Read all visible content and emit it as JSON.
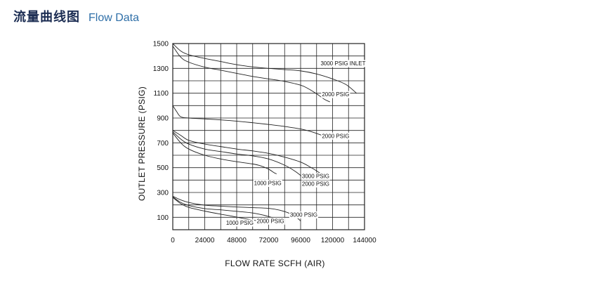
{
  "header": {
    "title_cn": "流量曲线图",
    "title_en": "Flow Data"
  },
  "chart_data": {
    "type": "line",
    "title": "",
    "xlabel": "FLOW  RATE  SCFH (AIR)",
    "ylabel": "OUTLET  PRESSURE  (PSIG)",
    "xlim": [
      0,
      144000
    ],
    "ylim": [
      0,
      1500
    ],
    "x_ticks": [
      0,
      24000,
      48000,
      72000,
      96000,
      120000,
      144000
    ],
    "x_tick_labels": [
      "0",
      "24000",
      "48000",
      "72000",
      "96000",
      "120000",
      "144000"
    ],
    "y_ticks": [
      100,
      300,
      500,
      700,
      900,
      1100,
      1300,
      1500
    ],
    "y_tick_labels": [
      "100",
      "300",
      "500",
      "700",
      "900",
      "1100",
      "1300",
      "1500"
    ],
    "grid": true,
    "grid_x_step": 12000,
    "grid_y_step": 100,
    "line_color": "#222222",
    "grid_color": "#222222",
    "series": [
      {
        "points": [
          [
            0,
            1500
          ],
          [
            6000,
            1440
          ],
          [
            12000,
            1410
          ],
          [
            24000,
            1380
          ],
          [
            36000,
            1355
          ],
          [
            48000,
            1330
          ],
          [
            60000,
            1312
          ],
          [
            72000,
            1300
          ],
          [
            84000,
            1290
          ],
          [
            96000,
            1280
          ],
          [
            108000,
            1255
          ],
          [
            120000,
            1215
          ],
          [
            130000,
            1170
          ],
          [
            138000,
            1100
          ]
        ]
      },
      {
        "points": [
          [
            0,
            1480
          ],
          [
            6000,
            1390
          ],
          [
            12000,
            1350
          ],
          [
            24000,
            1310
          ],
          [
            36000,
            1285
          ],
          [
            48000,
            1260
          ],
          [
            60000,
            1235
          ],
          [
            72000,
            1215
          ],
          [
            84000,
            1195
          ],
          [
            96000,
            1165
          ],
          [
            102000,
            1135
          ],
          [
            108000,
            1095
          ],
          [
            114000,
            1050
          ],
          [
            118000,
            1030
          ]
        ]
      },
      {
        "points": [
          [
            0,
            1000
          ],
          [
            3000,
            950
          ],
          [
            6000,
            910
          ],
          [
            12000,
            900
          ],
          [
            24000,
            893
          ],
          [
            36000,
            885
          ],
          [
            48000,
            875
          ],
          [
            60000,
            862
          ],
          [
            72000,
            848
          ],
          [
            84000,
            832
          ],
          [
            96000,
            812
          ],
          [
            104000,
            790
          ],
          [
            112000,
            760
          ],
          [
            116000,
            740
          ]
        ]
      },
      {
        "points": [
          [
            0,
            800
          ],
          [
            6000,
            760
          ],
          [
            12000,
            720
          ],
          [
            24000,
            690
          ],
          [
            36000,
            670
          ],
          [
            48000,
            650
          ],
          [
            60000,
            635
          ],
          [
            72000,
            615
          ],
          [
            84000,
            585
          ],
          [
            96000,
            545
          ],
          [
            104000,
            500
          ],
          [
            110000,
            460
          ],
          [
            114000,
            430
          ]
        ]
      },
      {
        "points": [
          [
            0,
            790
          ],
          [
            6000,
            730
          ],
          [
            12000,
            690
          ],
          [
            24000,
            650
          ],
          [
            36000,
            630
          ],
          [
            48000,
            610
          ],
          [
            60000,
            595
          ],
          [
            72000,
            570
          ],
          [
            84000,
            520
          ],
          [
            92000,
            470
          ],
          [
            98000,
            420
          ],
          [
            102000,
            385
          ]
        ]
      },
      {
        "points": [
          [
            0,
            780
          ],
          [
            6000,
            700
          ],
          [
            12000,
            650
          ],
          [
            24000,
            600
          ],
          [
            36000,
            570
          ],
          [
            48000,
            548
          ],
          [
            60000,
            530
          ],
          [
            66000,
            515
          ],
          [
            72000,
            488
          ],
          [
            76000,
            460
          ],
          [
            78000,
            450
          ]
        ]
      },
      {
        "points": [
          [
            0,
            270
          ],
          [
            6000,
            240
          ],
          [
            12000,
            220
          ],
          [
            24000,
            198
          ],
          [
            36000,
            190
          ],
          [
            48000,
            183
          ],
          [
            60000,
            178
          ],
          [
            72000,
            172
          ],
          [
            80000,
            158
          ],
          [
            88000,
            130
          ],
          [
            94000,
            90
          ],
          [
            96000,
            70
          ]
        ]
      },
      {
        "points": [
          [
            0,
            265
          ],
          [
            6000,
            220
          ],
          [
            12000,
            195
          ],
          [
            24000,
            170
          ],
          [
            36000,
            160
          ],
          [
            48000,
            148
          ],
          [
            60000,
            135
          ],
          [
            68000,
            118
          ],
          [
            74000,
            100
          ],
          [
            78000,
            85
          ],
          [
            80000,
            80
          ]
        ]
      },
      {
        "points": [
          [
            0,
            260
          ],
          [
            6000,
            210
          ],
          [
            12000,
            180
          ],
          [
            24000,
            150
          ],
          [
            36000,
            125
          ],
          [
            44000,
            110
          ],
          [
            52000,
            93
          ],
          [
            60000,
            78
          ],
          [
            66000,
            68
          ],
          [
            70000,
            60
          ]
        ]
      }
    ],
    "annotations": [
      {
        "text": "3000  PSIG INLET",
        "x": 111000,
        "y": 1325
      },
      {
        "text": "2000  PSIG",
        "x": 112000,
        "y": 1075
      },
      {
        "text": "2000  PSIG",
        "x": 112000,
        "y": 740
      },
      {
        "text": "3000  PSIG",
        "x": 97000,
        "y": 415
      },
      {
        "text": "2000  PSIG",
        "x": 97000,
        "y": 355
      },
      {
        "text": "1000  PSIG",
        "x": 61000,
        "y": 360
      },
      {
        "text": "3000  PSIG",
        "x": 88000,
        "y": 105
      },
      {
        "text": "2000  PSIG",
        "x": 63000,
        "y": 55
      },
      {
        "text": "1000  PSIG",
        "x": 40000,
        "y": 40
      }
    ]
  }
}
